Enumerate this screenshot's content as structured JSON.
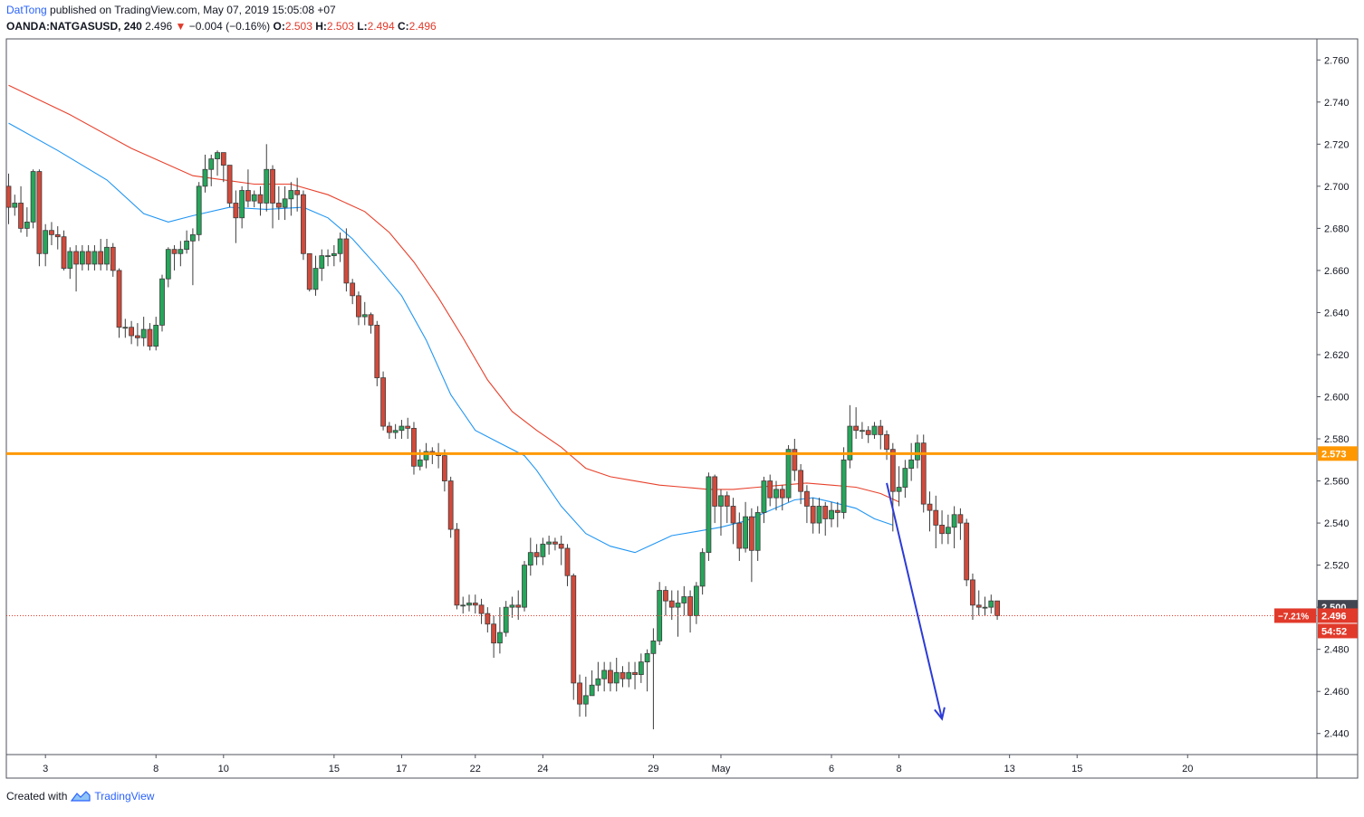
{
  "header": {
    "author": "DatTong",
    "published": "published on TradingView.com, May 07, 2019 15:05:08 +07",
    "symbol": "OANDA:NATGASUSD, 240",
    "last": "2.496",
    "change_arrow": "▼",
    "change": "−0.004 (−0.16%)",
    "o_label": "O:",
    "o_value": "2.503",
    "h_label": "H:",
    "h_value": "2.503",
    "l_label": "L:",
    "l_value": "2.494",
    "c_label": "C:",
    "c_value": "2.496"
  },
  "footer": {
    "created_with": "Created with",
    "brand": "TradingView",
    "logo_icon": "tradingview-logo-icon"
  },
  "chart_data": {
    "type": "candlestick",
    "ylim": [
      2.43,
      2.77
    ],
    "y_ticks": [
      2.44,
      2.46,
      2.48,
      2.5,
      2.52,
      2.54,
      2.56,
      2.58,
      2.6,
      2.62,
      2.64,
      2.66,
      2.68,
      2.7,
      2.72,
      2.74,
      2.76
    ],
    "y_tick_labels": [
      "2.440",
      "2.460",
      "2.480",
      "2.500",
      "2.520",
      "2.540",
      "2.560",
      "2.580",
      "2.600",
      "2.620",
      "2.640",
      "2.660",
      "2.680",
      "2.700",
      "2.720",
      "2.740",
      "2.760"
    ],
    "x_ticks": [
      {
        "label": "3",
        "bar": 6
      },
      {
        "label": "8",
        "bar": 24
      },
      {
        "label": "10",
        "bar": 35
      },
      {
        "label": "15",
        "bar": 53
      },
      {
        "label": "17",
        "bar": 64
      },
      {
        "label": "22",
        "bar": 76
      },
      {
        "label": "24",
        "bar": 87
      },
      {
        "label": "29",
        "bar": 105
      },
      {
        "label": "May",
        "bar": 116
      },
      {
        "label": "6",
        "bar": 134
      },
      {
        "label": "8",
        "bar": 145
      },
      {
        "label": "13",
        "bar": 163
      },
      {
        "label": "15",
        "bar": 174
      },
      {
        "label": "20",
        "bar": 192
      }
    ],
    "bar_count": 199,
    "candles": [
      [
        2.7,
        2.69,
        2.706,
        2.682
      ],
      [
        2.69,
        2.692,
        2.696,
        2.686
      ],
      [
        2.692,
        2.68,
        2.7,
        2.678
      ],
      [
        2.68,
        2.683,
        2.69,
        2.676
      ],
      [
        2.683,
        2.707,
        2.708,
        2.68
      ],
      [
        2.707,
        2.668,
        2.708,
        2.662
      ],
      [
        2.668,
        2.679,
        2.682,
        2.662
      ],
      [
        2.679,
        2.677,
        2.683,
        2.672
      ],
      [
        2.677,
        2.676,
        2.681,
        2.67
      ],
      [
        2.676,
        2.661,
        2.679,
        2.66
      ],
      [
        2.661,
        2.669,
        2.671,
        2.656
      ],
      [
        2.669,
        2.663,
        2.672,
        2.65
      ],
      [
        2.663,
        2.669,
        2.672,
        2.66
      ],
      [
        2.669,
        2.663,
        2.672,
        2.66
      ],
      [
        2.663,
        2.669,
        2.672,
        2.66
      ],
      [
        2.669,
        2.663,
        2.675,
        2.66
      ],
      [
        2.663,
        2.671,
        2.675,
        2.66
      ],
      [
        2.671,
        2.66,
        2.673,
        2.657
      ],
      [
        2.66,
        2.633,
        2.661,
        2.628
      ],
      [
        2.633,
        2.633,
        2.637,
        2.628
      ],
      [
        2.633,
        2.629,
        2.636,
        2.625
      ],
      [
        2.629,
        2.628,
        2.635,
        2.624
      ],
      [
        2.628,
        2.632,
        2.638,
        2.624
      ],
      [
        2.632,
        2.624,
        2.635,
        2.622
      ],
      [
        2.624,
        2.634,
        2.638,
        2.622
      ],
      [
        2.634,
        2.656,
        2.658,
        2.631
      ],
      [
        2.656,
        2.67,
        2.671,
        2.652
      ],
      [
        2.67,
        2.668,
        2.672,
        2.66
      ],
      [
        2.668,
        2.67,
        2.674,
        2.662
      ],
      [
        2.67,
        2.674,
        2.679,
        2.668
      ],
      [
        2.674,
        2.677,
        2.68,
        2.653
      ],
      [
        2.677,
        2.7,
        2.702,
        2.674
      ],
      [
        2.7,
        2.708,
        2.715,
        2.697
      ],
      [
        2.708,
        2.713,
        2.715,
        2.7
      ],
      [
        2.713,
        2.716,
        2.717,
        2.705
      ],
      [
        2.716,
        2.71,
        2.716,
        2.702
      ],
      [
        2.71,
        2.692,
        2.71,
        2.69
      ],
      [
        2.692,
        2.685,
        2.698,
        2.673
      ],
      [
        2.685,
        2.698,
        2.7,
        2.68
      ],
      [
        2.698,
        2.693,
        2.708,
        2.69
      ],
      [
        2.693,
        2.696,
        2.698,
        2.69
      ],
      [
        2.696,
        2.692,
        2.7,
        2.686
      ],
      [
        2.692,
        2.708,
        2.72,
        2.688
      ],
      [
        2.708,
        2.692,
        2.71,
        2.68
      ],
      [
        2.692,
        2.69,
        2.7,
        2.684
      ],
      [
        2.69,
        2.694,
        2.7,
        2.684
      ],
      [
        2.694,
        2.698,
        2.702,
        2.686
      ],
      [
        2.698,
        2.696,
        2.704,
        2.688
      ],
      [
        2.696,
        2.668,
        2.698,
        2.665
      ],
      [
        2.668,
        2.651,
        2.668,
        2.65
      ],
      [
        2.651,
        2.661,
        2.667,
        2.648
      ],
      [
        2.661,
        2.667,
        2.67,
        2.655
      ],
      [
        2.667,
        2.667,
        2.67,
        2.662
      ],
      [
        2.667,
        2.668,
        2.672,
        2.662
      ],
      [
        2.668,
        2.675,
        2.678,
        2.664
      ],
      [
        2.675,
        2.654,
        2.68,
        2.65
      ],
      [
        2.654,
        2.648,
        2.656,
        2.644
      ],
      [
        2.648,
        2.638,
        2.65,
        2.634
      ],
      [
        2.638,
        2.639,
        2.645,
        2.634
      ],
      [
        2.639,
        2.634,
        2.64,
        2.63
      ],
      [
        2.634,
        2.609,
        2.636,
        2.605
      ],
      [
        2.609,
        2.586,
        2.612,
        2.584
      ],
      [
        2.586,
        2.583,
        2.588,
        2.58
      ],
      [
        2.583,
        2.584,
        2.587,
        2.58
      ],
      [
        2.584,
        2.586,
        2.589,
        2.58
      ],
      [
        2.586,
        2.585,
        2.59,
        2.58
      ],
      [
        2.585,
        2.567,
        2.588,
        2.563
      ],
      [
        2.567,
        2.57,
        2.575,
        2.565
      ],
      [
        2.57,
        2.574,
        2.578,
        2.566
      ],
      [
        2.574,
        2.573,
        2.576,
        2.568
      ],
      [
        2.573,
        2.572,
        2.578,
        2.566
      ],
      [
        2.572,
        2.56,
        2.575,
        2.555
      ],
      [
        2.56,
        2.537,
        2.562,
        2.533
      ],
      [
        2.537,
        2.501,
        2.54,
        2.499
      ],
      [
        2.501,
        2.501,
        2.505,
        2.497
      ],
      [
        2.501,
        2.502,
        2.506,
        2.498
      ],
      [
        2.502,
        2.501,
        2.506,
        2.497
      ],
      [
        2.501,
        2.497,
        2.504,
        2.492
      ],
      [
        2.497,
        2.492,
        2.5,
        2.488
      ],
      [
        2.492,
        2.483,
        2.496,
        2.476
      ],
      [
        2.483,
        2.488,
        2.5,
        2.478
      ],
      [
        2.488,
        2.5,
        2.503,
        2.486
      ],
      [
        2.5,
        2.501,
        2.505,
        2.495
      ],
      [
        2.501,
        2.5,
        2.508,
        2.494
      ],
      [
        2.5,
        2.52,
        2.522,
        2.498
      ],
      [
        2.52,
        2.526,
        2.533,
        2.515
      ],
      [
        2.526,
        2.524,
        2.53,
        2.52
      ],
      [
        2.524,
        2.53,
        2.533,
        2.52
      ],
      [
        2.53,
        2.531,
        2.534,
        2.525
      ],
      [
        2.531,
        2.53,
        2.533,
        2.527
      ],
      [
        2.53,
        2.528,
        2.534,
        2.52
      ],
      [
        2.528,
        2.515,
        2.53,
        2.51
      ],
      [
        2.515,
        2.464,
        2.516,
        2.456
      ],
      [
        2.464,
        2.454,
        2.468,
        2.448
      ],
      [
        2.454,
        2.458,
        2.467,
        2.448
      ],
      [
        2.458,
        2.463,
        2.47,
        2.458
      ],
      [
        2.463,
        2.466,
        2.474,
        2.46
      ],
      [
        2.466,
        2.47,
        2.474,
        2.46
      ],
      [
        2.47,
        2.464,
        2.474,
        2.46
      ],
      [
        2.464,
        2.469,
        2.476,
        2.46
      ],
      [
        2.469,
        2.466,
        2.472,
        2.462
      ],
      [
        2.466,
        2.469,
        2.474,
        2.462
      ],
      [
        2.469,
        2.468,
        2.474,
        2.461
      ],
      [
        2.468,
        2.474,
        2.478,
        2.464
      ],
      [
        2.474,
        2.478,
        2.48,
        2.46
      ],
      [
        2.478,
        2.484,
        2.49,
        2.442
      ],
      [
        2.484,
        2.508,
        2.512,
        2.482
      ],
      [
        2.508,
        2.503,
        2.51,
        2.496
      ],
      [
        2.503,
        2.5,
        2.508,
        2.494
      ],
      [
        2.5,
        2.502,
        2.508,
        2.486
      ],
      [
        2.502,
        2.505,
        2.51,
        2.496
      ],
      [
        2.505,
        2.496,
        2.508,
        2.488
      ],
      [
        2.496,
        2.51,
        2.512,
        2.492
      ],
      [
        2.51,
        2.526,
        2.528,
        2.506
      ],
      [
        2.526,
        2.562,
        2.564,
        2.522
      ],
      [
        2.562,
        2.548,
        2.563,
        2.54
      ],
      [
        2.548,
        2.553,
        2.556,
        2.534
      ],
      [
        2.553,
        2.548,
        2.555,
        2.54
      ],
      [
        2.548,
        2.54,
        2.552,
        2.53
      ],
      [
        2.54,
        2.528,
        2.545,
        2.522
      ],
      [
        2.528,
        2.543,
        2.55,
        2.526
      ],
      [
        2.543,
        2.527,
        2.547,
        2.512
      ],
      [
        2.527,
        2.545,
        2.548,
        2.522
      ],
      [
        2.545,
        2.56,
        2.562,
        2.54
      ],
      [
        2.56,
        2.552,
        2.563,
        2.548
      ],
      [
        2.552,
        2.556,
        2.56,
        2.546
      ],
      [
        2.556,
        2.552,
        2.558,
        2.546
      ],
      [
        2.552,
        2.575,
        2.577,
        2.55
      ],
      [
        2.575,
        2.565,
        2.58,
        2.56
      ],
      [
        2.565,
        2.555,
        2.568,
        2.549
      ],
      [
        2.555,
        2.548,
        2.558,
        2.54
      ],
      [
        2.548,
        2.54,
        2.552,
        2.535
      ],
      [
        2.54,
        2.548,
        2.552,
        2.535
      ],
      [
        2.548,
        2.542,
        2.55,
        2.534
      ],
      [
        2.542,
        2.546,
        2.55,
        2.538
      ],
      [
        2.546,
        2.545,
        2.55,
        2.538
      ],
      [
        2.545,
        2.57,
        2.576,
        2.542
      ],
      [
        2.57,
        2.586,
        2.596,
        2.566
      ],
      [
        2.586,
        2.584,
        2.595,
        2.58
      ],
      [
        2.584,
        2.584,
        2.588,
        2.58
      ],
      [
        2.584,
        2.582,
        2.586,
        2.578
      ],
      [
        2.582,
        2.586,
        2.588,
        2.58
      ],
      [
        2.586,
        2.582,
        2.589,
        2.575
      ],
      [
        2.582,
        2.575,
        2.584,
        2.57
      ],
      [
        2.575,
        2.555,
        2.578,
        2.536
      ],
      [
        2.555,
        2.557,
        2.567,
        2.548
      ],
      [
        2.557,
        2.566,
        2.57,
        2.552
      ],
      [
        2.566,
        2.57,
        2.578,
        2.56
      ],
      [
        2.57,
        2.578,
        2.582,
        2.566
      ],
      [
        2.578,
        2.549,
        2.582,
        2.545
      ],
      [
        2.549,
        2.546,
        2.555,
        2.536
      ],
      [
        2.546,
        2.539,
        2.553,
        2.528
      ],
      [
        2.539,
        2.535,
        2.546,
        2.53
      ],
      [
        2.535,
        2.538,
        2.544,
        2.53
      ],
      [
        2.538,
        2.544,
        2.548,
        2.528
      ],
      [
        2.544,
        2.54,
        2.547,
        2.532
      ],
      [
        2.54,
        2.513,
        2.542,
        2.51
      ],
      [
        2.513,
        2.501,
        2.516,
        2.494
      ],
      [
        2.501,
        2.5,
        2.508,
        2.496
      ],
      [
        2.5,
        2.5,
        2.505,
        2.496
      ],
      [
        2.5,
        2.503,
        2.506,
        2.497
      ],
      [
        2.503,
        2.496,
        2.503,
        2.494
      ]
    ],
    "ema_slow": {
      "name": "EMA slow",
      "color": "#e8412c",
      "values": [
        [
          0,
          2.748
        ],
        [
          10,
          2.734
        ],
        [
          20,
          2.718
        ],
        [
          30,
          2.705
        ],
        [
          40,
          2.701
        ],
        [
          46,
          2.701
        ],
        [
          52,
          2.696
        ],
        [
          58,
          2.688
        ],
        [
          62,
          2.678
        ],
        [
          66,
          2.664
        ],
        [
          70,
          2.647
        ],
        [
          74,
          2.628
        ],
        [
          78,
          2.608
        ],
        [
          82,
          2.593
        ],
        [
          86,
          2.584
        ],
        [
          90,
          2.576
        ],
        [
          94,
          2.566
        ],
        [
          98,
          2.562
        ],
        [
          102,
          2.56
        ],
        [
          106,
          2.558
        ],
        [
          110,
          2.557
        ],
        [
          114,
          2.556
        ],
        [
          118,
          2.556
        ],
        [
          122,
          2.557
        ],
        [
          126,
          2.558
        ],
        [
          130,
          2.559
        ],
        [
          134,
          2.558
        ],
        [
          138,
          2.557
        ],
        [
          142,
          2.554
        ],
        [
          145,
          2.55
        ]
      ]
    },
    "ema_fast": {
      "name": "EMA fast",
      "color": "#2196f3",
      "values": [
        [
          0,
          2.73
        ],
        [
          8,
          2.717
        ],
        [
          16,
          2.703
        ],
        [
          22,
          2.687
        ],
        [
          26,
          2.683
        ],
        [
          30,
          2.686
        ],
        [
          36,
          2.69
        ],
        [
          42,
          2.689
        ],
        [
          48,
          2.69
        ],
        [
          52,
          2.685
        ],
        [
          56,
          2.675
        ],
        [
          60,
          2.662
        ],
        [
          64,
          2.648
        ],
        [
          68,
          2.627
        ],
        [
          72,
          2.601
        ],
        [
          76,
          2.584
        ],
        [
          80,
          2.578
        ],
        [
          84,
          2.572
        ],
        [
          86,
          2.565
        ],
        [
          90,
          2.548
        ],
        [
          94,
          2.535
        ],
        [
          98,
          2.529
        ],
        [
          102,
          2.526
        ],
        [
          105,
          2.53
        ],
        [
          108,
          2.534
        ],
        [
          112,
          2.536
        ],
        [
          116,
          2.538
        ],
        [
          120,
          2.541
        ],
        [
          124,
          2.546
        ],
        [
          128,
          2.551
        ],
        [
          131,
          2.552
        ],
        [
          134,
          2.55
        ],
        [
          138,
          2.547
        ],
        [
          141,
          2.542
        ],
        [
          144,
          2.539
        ]
      ]
    },
    "support_line": {
      "value": 2.573,
      "label": "2.573",
      "color": "#ff9800"
    },
    "current_line": {
      "value": 2.496,
      "color": "#e13a2b"
    },
    "last_price_labels": {
      "high": "2.500",
      "close": "2.496",
      "pct": "−7.21%",
      "countdown": "54:52"
    },
    "arrow": {
      "start": {
        "bar": 143,
        "value": 2.559
      },
      "end": {
        "bar": 152,
        "value": 2.447
      },
      "color": "#2c3bd6"
    }
  }
}
